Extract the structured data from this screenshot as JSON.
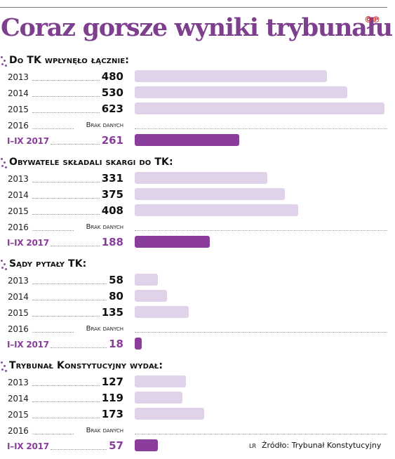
{
  "title": "Coraz gorsze wyniki trybunału",
  "copyright": "©℗",
  "no_data_label": "Brak danych",
  "author": "LR",
  "source": "Źródło: Trybunał Konstytucyjny",
  "colors": {
    "title": "#7e3f8f",
    "bar_past": "#dfd2e9",
    "bar_current": "#8b3d9b",
    "copyright": "#d8322f"
  },
  "chart_data": {
    "type": "bar",
    "orientation": "horizontal",
    "title": "Coraz gorsze wyniki trybunału",
    "categories": [
      "2013",
      "2014",
      "2015",
      "2016",
      "I–IX 2017"
    ],
    "xlim": [
      0,
      623
    ],
    "grid": false,
    "panels": [
      {
        "title": "Do TK wpłynęło łącznie:",
        "values": [
          480,
          530,
          623,
          null,
          261
        ],
        "labels": [
          "480",
          "530",
          "623",
          "Brak danych",
          "261"
        ]
      },
      {
        "title": "Obywatele składali skargi do TK:",
        "values": [
          331,
          375,
          408,
          null,
          188
        ],
        "labels": [
          "331",
          "375",
          "408",
          "Brak danych",
          "188"
        ]
      },
      {
        "title": "Sądy pytały TK:",
        "values": [
          58,
          80,
          135,
          null,
          18
        ],
        "labels": [
          "58",
          "80",
          "135",
          "Brak danych",
          "18"
        ]
      },
      {
        "title": "Trybunał Konstytucyjny wydał:",
        "values": [
          127,
          119,
          173,
          null,
          57
        ],
        "labels": [
          "127",
          "119",
          "173",
          "Brak danych",
          "57"
        ]
      }
    ]
  }
}
